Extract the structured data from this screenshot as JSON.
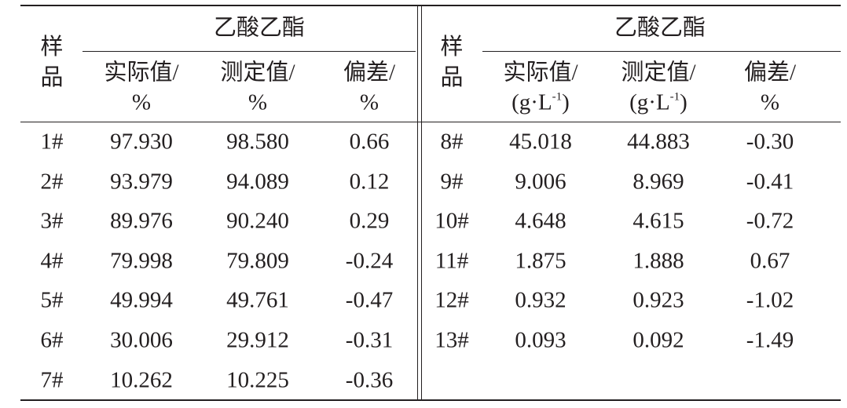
{
  "left": {
    "sample_header": "样品",
    "group": "乙酸乙酯",
    "columns": [
      {
        "line1": "实际值/",
        "line2": "%"
      },
      {
        "line1": "测定值/",
        "line2": "%"
      },
      {
        "line1": "偏差/",
        "line2": "%"
      }
    ],
    "rows": [
      [
        "1#",
        "97.930",
        "98.580",
        "0.66"
      ],
      [
        "2#",
        "93.979",
        "94.089",
        "0.12"
      ],
      [
        "3#",
        "89.976",
        "90.240",
        "0.29"
      ],
      [
        "4#",
        "79.998",
        "79.809",
        "-0.24"
      ],
      [
        "5#",
        "49.994",
        "49.761",
        "-0.47"
      ],
      [
        "6#",
        "30.006",
        "29.912",
        "-0.31"
      ],
      [
        "7#",
        "10.262",
        "10.225",
        "-0.36"
      ]
    ]
  },
  "right": {
    "sample_header": "样品",
    "group": "乙酸乙酯",
    "columns": [
      {
        "line1": "实际值/",
        "line2": "(g·L",
        "line2_sup": "-1",
        "line2_end": ")"
      },
      {
        "line1": "测定值/",
        "line2": "(g·L",
        "line2_sup": "-1",
        "line2_end": ")"
      },
      {
        "line1": "偏差/",
        "line2": "%"
      }
    ],
    "rows": [
      [
        "8#",
        "45.018",
        "44.883",
        "-0.30"
      ],
      [
        "9#",
        "9.006",
        "8.969",
        "-0.41"
      ],
      [
        "10#",
        "4.648",
        "4.615",
        "-0.72"
      ],
      [
        "11#",
        "1.875",
        "1.888",
        "0.67"
      ],
      [
        "12#",
        "0.932",
        "0.923",
        "-1.02"
      ],
      [
        "13#",
        "0.093",
        "0.092",
        "-1.49"
      ]
    ]
  }
}
